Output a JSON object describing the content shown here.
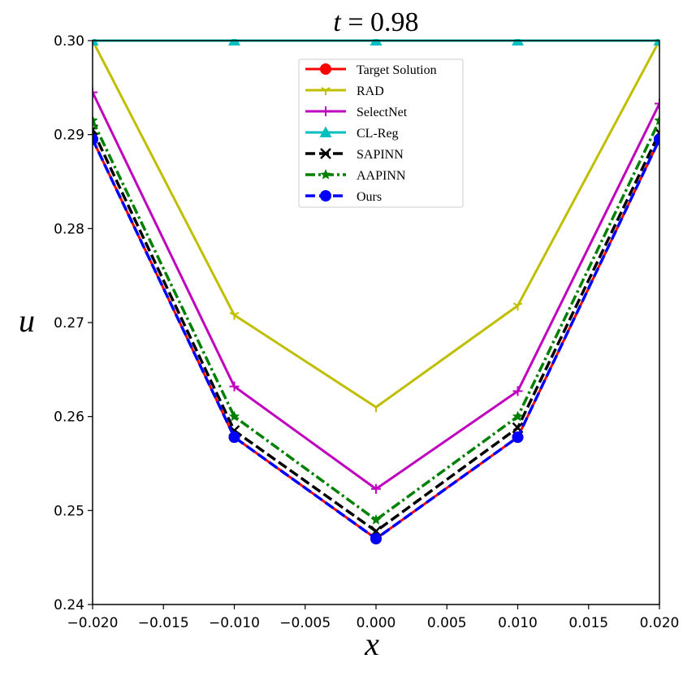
{
  "chart_data": {
    "type": "line",
    "title_var": "t",
    "title_eq": " = 0.98",
    "xlabel": "x",
    "ylabel": "u",
    "xlim": [
      -0.02,
      0.02
    ],
    "ylim": [
      0.24,
      0.3
    ],
    "xticks": [
      "−0.020",
      "−0.015",
      "−0.010",
      "−0.005",
      "0.000",
      "0.005",
      "0.010",
      "0.015",
      "0.020"
    ],
    "yticks": [
      "0.24",
      "0.25",
      "0.26",
      "0.27",
      "0.28",
      "0.29",
      "0.30"
    ],
    "grid": false,
    "legend_position": "upper-center",
    "x": [
      -0.02,
      -0.01,
      0.0,
      0.01,
      0.02
    ],
    "series": [
      {
        "name": "Target Solution",
        "color": "#ff0000",
        "marker": "circle",
        "dash": "solid",
        "values": [
          0.2895,
          0.2578,
          0.247,
          0.2578,
          0.2895
        ]
      },
      {
        "name": "RAD",
        "color": "#bfbf00",
        "marker": "tri_down",
        "dash": "solid",
        "values": [
          0.3,
          0.2708,
          0.261,
          0.2718,
          0.3
        ]
      },
      {
        "name": "SelectNet",
        "color": "#bf00bf",
        "marker": "plus",
        "dash": "solid",
        "values": [
          0.2945,
          0.2632,
          0.2523,
          0.2627,
          0.2933
        ]
      },
      {
        "name": "CL-Reg",
        "color": "#00bfbf",
        "marker": "triangle",
        "dash": "solid",
        "values": [
          0.3,
          0.3,
          0.3,
          0.3,
          0.3
        ]
      },
      {
        "name": "SAPINN",
        "color": "#000000",
        "marker": "x",
        "dash": "dashed",
        "values": [
          0.2905,
          0.2585,
          0.2478,
          0.2588,
          0.2902
        ]
      },
      {
        "name": "AAPINN",
        "color": "#008000",
        "marker": "star",
        "dash": "dashdot",
        "values": [
          0.2915,
          0.26,
          0.249,
          0.26,
          0.2915
        ]
      },
      {
        "name": "Ours",
        "color": "#0000ff",
        "marker": "circle",
        "dash": "dashed",
        "values": [
          0.2895,
          0.2578,
          0.247,
          0.2578,
          0.2895
        ]
      }
    ]
  }
}
